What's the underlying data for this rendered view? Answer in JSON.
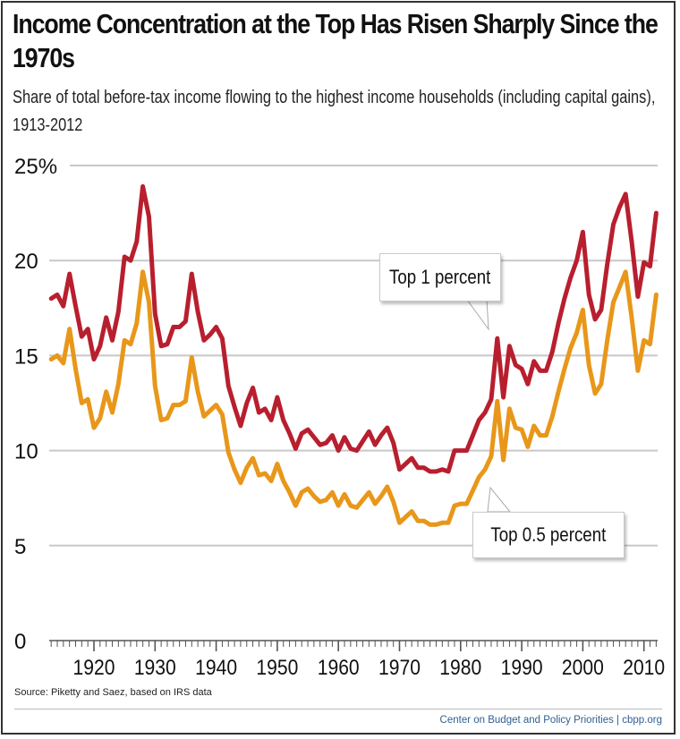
{
  "header": {
    "title": "Income Concentration at the Top Has Risen Sharply Since the 1970s",
    "subtitle": "Share of total before-tax income flowing to the highest income households (including capital gains), 1913-2012"
  },
  "footer": {
    "source": "Source: Piketty and Saez, based on IRS data",
    "credit": "Center on Budget and Policy Priorities | cbpp.org"
  },
  "colors": {
    "top1": "#b81f2e",
    "top05": "#e8971a",
    "grid": "#c8c8c8"
  },
  "chart_data": {
    "type": "line",
    "title": "Income Concentration at the Top Has Risen Sharply Since the 1970s",
    "subtitle": "Share of total before-tax income flowing to the highest income households (including capital gains), 1913-2012",
    "xlabel": "",
    "ylabel": "",
    "xlim": [
      1913,
      2012
    ],
    "ylim": [
      0,
      25
    ],
    "grid": true,
    "y_ticks": [
      "0",
      "5",
      "10",
      "15",
      "20",
      "25%"
    ],
    "y_tick_values": [
      0,
      5,
      10,
      15,
      20,
      25
    ],
    "x_ticks": [
      "1920",
      "1930",
      "1940",
      "1950",
      "1960",
      "1970",
      "1980",
      "1990",
      "2000",
      "2010"
    ],
    "x_tick_values": [
      1920,
      1930,
      1940,
      1950,
      1960,
      1970,
      1980,
      1990,
      2000,
      2010
    ],
    "x_start": 1913,
    "series": [
      {
        "name": "Top 1 percent",
        "values": [
          18.0,
          18.2,
          17.6,
          19.3,
          17.6,
          16.0,
          16.4,
          14.8,
          15.5,
          17.0,
          15.8,
          17.3,
          20.2,
          20.0,
          21.0,
          23.9,
          22.3,
          17.2,
          15.5,
          15.6,
          16.5,
          16.5,
          16.8,
          19.3,
          17.3,
          15.8,
          16.1,
          16.5,
          15.9,
          13.4,
          12.3,
          11.3,
          12.5,
          13.3,
          12.0,
          12.2,
          11.6,
          12.8,
          11.6,
          10.9,
          10.1,
          10.9,
          11.1,
          10.7,
          10.3,
          10.4,
          10.8,
          10.0,
          10.7,
          10.1,
          10.0,
          10.5,
          11.0,
          10.3,
          10.8,
          11.2,
          10.4,
          9.0,
          9.3,
          9.6,
          9.1,
          9.1,
          8.9,
          8.9,
          9.0,
          8.9,
          10.0,
          10.0,
          10.0,
          10.8,
          11.6,
          12.0,
          12.7,
          15.9,
          12.8,
          15.5,
          14.5,
          14.3,
          13.5,
          14.7,
          14.2,
          14.2,
          15.2,
          16.7,
          18.0,
          19.1,
          20.0,
          21.5,
          18.2,
          16.9,
          17.4,
          19.8,
          21.9,
          22.8,
          23.5,
          21.0,
          18.1,
          19.9,
          19.7,
          22.5
        ]
      },
      {
        "name": "Top 0.5 percent",
        "values": [
          14.8,
          15.0,
          14.6,
          16.4,
          14.3,
          12.5,
          12.7,
          11.2,
          11.7,
          13.1,
          12.0,
          13.5,
          15.8,
          15.6,
          16.7,
          19.4,
          17.8,
          13.4,
          11.6,
          11.7,
          12.4,
          12.4,
          12.6,
          14.9,
          13.1,
          11.8,
          12.1,
          12.4,
          11.9,
          9.9,
          9.0,
          8.3,
          9.1,
          9.6,
          8.7,
          8.8,
          8.4,
          9.3,
          8.4,
          7.8,
          7.1,
          7.8,
          8.0,
          7.6,
          7.3,
          7.4,
          7.8,
          7.1,
          7.7,
          7.1,
          7.0,
          7.4,
          7.8,
          7.2,
          7.6,
          8.1,
          7.3,
          6.2,
          6.5,
          6.8,
          6.3,
          6.3,
          6.1,
          6.1,
          6.2,
          6.2,
          7.1,
          7.2,
          7.2,
          7.9,
          8.6,
          9.0,
          9.7,
          12.6,
          9.5,
          12.2,
          11.2,
          11.1,
          10.2,
          11.3,
          10.8,
          10.8,
          11.8,
          13.1,
          14.3,
          15.4,
          16.2,
          17.4,
          14.5,
          13.0,
          13.5,
          15.8,
          17.8,
          18.6,
          19.4,
          17.0,
          14.2,
          15.8,
          15.6,
          18.2
        ]
      }
    ],
    "annotations": [
      {
        "text": "Top 1 percent",
        "series": "Top 1 percent",
        "x": 1986,
        "y": 15.9
      },
      {
        "text": "Top 0.5 percent",
        "series": "Top 0.5 percent",
        "x": 1986,
        "y": 8.0
      }
    ]
  }
}
